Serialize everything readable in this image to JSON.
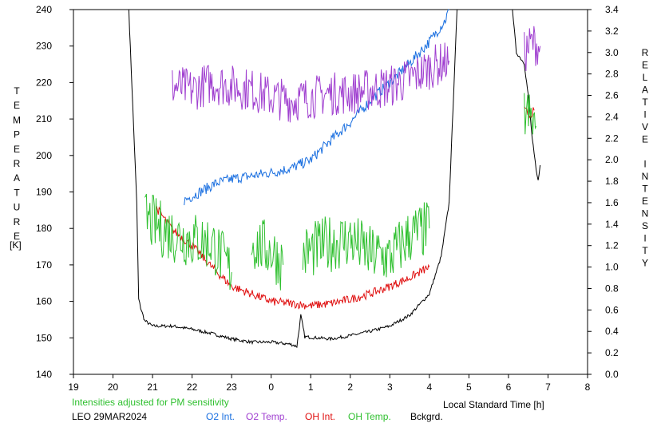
{
  "chart_data": {
    "type": "line",
    "xlabel": "Local Standard Time [h]",
    "ylabel_left": "TEMPERATURE",
    "ylabel_left_unit": "[K]",
    "ylabel_right": "RELATIVE INTENSITY",
    "note": "Intensities adjusted for PM sensitivity",
    "station_date": "LEO 29MAR2024",
    "x_ticks": [
      "19",
      "20",
      "21",
      "22",
      "23",
      "0",
      "1",
      "2",
      "3",
      "4",
      "5",
      "6",
      "7",
      "8"
    ],
    "xlim": [
      19,
      32
    ],
    "y_left_ticks": [
      "140",
      "150",
      "160",
      "170",
      "180",
      "190",
      "200",
      "210",
      "220",
      "230",
      "240"
    ],
    "ylim_left": [
      140,
      240
    ],
    "y_right_ticks": [
      "0.0",
      "0.2",
      "0.4",
      "0.6",
      "0.8",
      "1.0",
      "1.2",
      "1.4",
      "1.6",
      "1.8",
      "2.0",
      "2.2",
      "2.4",
      "2.6",
      "2.8",
      "3.0",
      "3.2",
      "3.4"
    ],
    "ylim_right": [
      0.0,
      3.4
    ],
    "legend": [
      {
        "label": "O2 Int.",
        "color": "#1a6fe0"
      },
      {
        "label": "O2 Temp.",
        "color": "#a040d0"
      },
      {
        "label": "OH Int.",
        "color": "#e01010"
      },
      {
        "label": "OH Temp.",
        "color": "#30c030"
      },
      {
        "label": "Bckgrd.",
        "color": "#000000"
      }
    ],
    "series": [
      {
        "name": "Bckgrd.",
        "axis": "right",
        "color": "#000000",
        "segments": [
          [
            [
              20.4,
              3.4
            ],
            [
              20.5,
              2.5
            ],
            [
              20.6,
              1.6
            ],
            [
              20.65,
              0.7
            ],
            [
              20.7,
              0.62
            ],
            [
              20.8,
              0.5
            ],
            [
              21.0,
              0.45
            ],
            [
              21.5,
              0.45
            ],
            [
              22.0,
              0.42
            ],
            [
              22.5,
              0.38
            ],
            [
              23.0,
              0.33
            ],
            [
              23.5,
              0.3
            ],
            [
              24.0,
              0.3
            ],
            [
              24.5,
              0.28
            ],
            [
              24.65,
              0.26
            ],
            [
              24.75,
              0.55
            ],
            [
              24.85,
              0.35
            ],
            [
              25.5,
              0.33
            ],
            [
              26.0,
              0.36
            ],
            [
              26.5,
              0.4
            ],
            [
              27.0,
              0.45
            ],
            [
              27.5,
              0.55
            ],
            [
              28.0,
              0.75
            ],
            [
              28.3,
              1.1
            ],
            [
              28.5,
              1.6
            ],
            [
              28.6,
              2.5
            ],
            [
              28.7,
              3.4
            ]
          ],
          [
            [
              30.1,
              3.4
            ],
            [
              30.2,
              3.0
            ],
            [
              30.4,
              2.9
            ],
            [
              30.5,
              2.6
            ],
            [
              30.6,
              2.2
            ],
            [
              30.7,
              1.9
            ],
            [
              30.75,
              1.8
            ],
            [
              30.8,
              1.95
            ]
          ]
        ]
      },
      {
        "name": "O2 Int.",
        "axis": "right",
        "color": "#1a6fe0",
        "segments": [
          [
            [
              21.8,
              1.62
            ],
            [
              22.2,
              1.7
            ],
            [
              22.6,
              1.78
            ],
            [
              23.0,
              1.82
            ],
            [
              23.5,
              1.85
            ],
            [
              24.0,
              1.88
            ],
            [
              24.5,
              1.92
            ],
            [
              25.0,
              2.0
            ],
            [
              25.5,
              2.18
            ],
            [
              26.0,
              2.35
            ],
            [
              26.5,
              2.55
            ],
            [
              27.0,
              2.72
            ],
            [
              27.5,
              2.9
            ],
            [
              28.0,
              3.1
            ],
            [
              28.4,
              3.3
            ],
            [
              28.5,
              3.4
            ]
          ]
        ]
      },
      {
        "name": "O2 Temp.",
        "axis": "left",
        "color": "#a040d0",
        "segments": [
          [
            [
              21.5,
              219
            ],
            [
              22.0,
              218
            ],
            [
              22.5,
              220
            ],
            [
              23.0,
              219
            ],
            [
              23.5,
              218
            ],
            [
              24.0,
              216
            ],
            [
              24.5,
              215
            ],
            [
              25.0,
              216
            ],
            [
              25.5,
              217
            ],
            [
              26.0,
              217
            ],
            [
              26.5,
              218
            ],
            [
              27.0,
              219
            ],
            [
              27.5,
              221
            ],
            [
              28.0,
              224
            ],
            [
              28.5,
              226
            ]
          ],
          [
            [
              30.4,
              228
            ],
            [
              30.6,
              231
            ],
            [
              30.8,
              230
            ]
          ]
        ]
      },
      {
        "name": "OH Int.",
        "axis": "right",
        "color": "#e01010",
        "segments": [
          [
            [
              21.1,
              1.55
            ],
            [
              21.5,
              1.35
            ],
            [
              22.0,
              1.2
            ],
            [
              22.5,
              1.0
            ],
            [
              23.0,
              0.82
            ],
            [
              23.5,
              0.75
            ],
            [
              24.0,
              0.68
            ],
            [
              24.5,
              0.66
            ],
            [
              25.0,
              0.64
            ],
            [
              25.5,
              0.66
            ],
            [
              26.0,
              0.7
            ],
            [
              26.5,
              0.75
            ],
            [
              27.0,
              0.82
            ],
            [
              27.5,
              0.9
            ],
            [
              28.0,
              1.0
            ]
          ],
          [
            [
              30.4,
              2.46
            ],
            [
              30.55,
              2.42
            ],
            [
              30.65,
              2.46
            ]
          ]
        ]
      },
      {
        "name": "OH Temp.",
        "axis": "left",
        "color": "#30c030",
        "segments": [
          [
            [
              20.8,
              183
            ],
            [
              21.2,
              180
            ],
            [
              21.6,
              178
            ],
            [
              22.0,
              177
            ],
            [
              22.5,
              176
            ],
            [
              23.0,
              168
            ]
          ],
          [
            [
              23.5,
              176
            ],
            [
              24.0,
              174
            ],
            [
              24.3,
              170
            ]
          ],
          [
            [
              24.8,
              173
            ],
            [
              25.5,
              176
            ],
            [
              26.0,
              177
            ],
            [
              26.5,
              173
            ],
            [
              27.0,
              172
            ],
            [
              27.5,
              178
            ],
            [
              28.0,
              180
            ]
          ],
          [
            [
              30.4,
              212
            ],
            [
              30.55,
              210
            ],
            [
              30.7,
              208
            ]
          ]
        ]
      }
    ]
  }
}
